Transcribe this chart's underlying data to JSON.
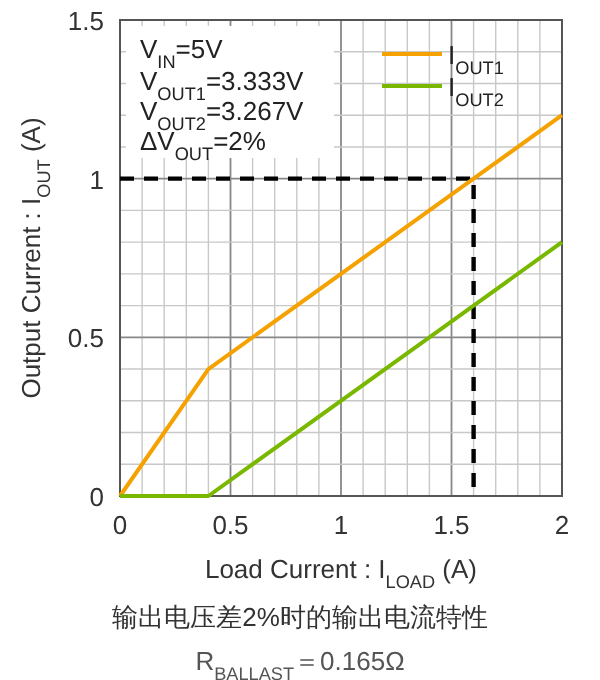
{
  "chart_data": {
    "type": "line",
    "xlabel": "Load Current : I$_{LOAD}$ (A)",
    "ylabel": "Output Current : I$_{OUT}$ (A)",
    "x": [
      0,
      0.4,
      1.6,
      1.6,
      2
    ],
    "series": [
      {
        "name": "I$_{OUT1}$",
        "color": "#f5a100",
        "values": [
          0,
          0.4,
          1,
          1,
          1.2
        ]
      },
      {
        "name": "I$_{OUT2}$",
        "color": "#7ab800",
        "values": [
          0,
          0,
          0.6,
          0.6,
          0.8
        ]
      },
      {
        "color": "#000000",
        "line_style": "dashed",
        "values": [
          1,
          1,
          1,
          0,
          null
        ]
      }
    ],
    "xlim": [
      0,
      2
    ],
    "xticks": [
      0,
      0.5,
      1,
      1.5,
      2
    ],
    "ylim": [
      0,
      1.5
    ],
    "yticks": [
      0,
      0.5,
      1,
      1.5
    ],
    "grid": true,
    "legend": "top right",
    "marker": "none",
    "line_style": "solid",
    "annotations": [
      "V$_{IN}$=5V",
      "V$_{OUT1}$=3.333V",
      "V$_{OUT2}$=3.267V",
      "ΔV$_{OUT}$=2%",
      "输出电压差2%时的输出电流特性",
      "R$_{BALLAST}$＝0.165Ω"
    ]
  }
}
